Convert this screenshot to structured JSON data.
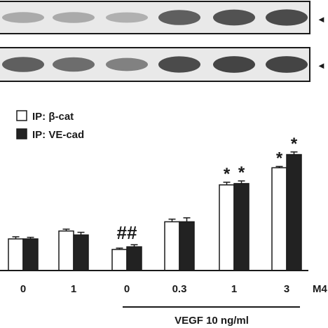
{
  "chart_data": {
    "type": "bar",
    "categories": [
      "0",
      "1",
      "0",
      "0.3",
      "1",
      "3"
    ],
    "group_label": "VEGF 10 ng/ml",
    "axis_suffix_label": "M4",
    "legend": {
      "position": "top-left",
      "entries": [
        "IP: β-cat",
        "IP: VE-cad"
      ]
    },
    "series": [
      {
        "name": "IP: β-cat",
        "color": "#ffffff",
        "values": [
          1.2,
          1.5,
          0.8,
          1.85,
          3.25,
          3.9
        ],
        "errors": [
          0.08,
          0.07,
          0.05,
          0.1,
          0.1,
          0.05
        ]
      },
      {
        "name": "IP: VE-cad",
        "color": "#222222",
        "values": [
          1.2,
          1.35,
          0.9,
          1.85,
          3.3,
          4.4
        ],
        "errors": [
          0.06,
          0.1,
          0.08,
          0.15,
          0.1,
          0.1
        ]
      }
    ],
    "annotations": [
      {
        "category_index": 2,
        "text": "##"
      },
      {
        "category_index": 4,
        "series_index": 0,
        "text": "*"
      },
      {
        "category_index": 4,
        "series_index": 1,
        "text": "*"
      },
      {
        "category_index": 5,
        "series_index": 0,
        "text": "*"
      },
      {
        "category_index": 5,
        "series_index": 1,
        "text": "*"
      }
    ],
    "ylim": [
      0,
      5
    ],
    "blots": {
      "arrow_glyph": "◄",
      "top_band_intensity": [
        0.25,
        0.25,
        0.2,
        0.8,
        0.9,
        0.95
      ],
      "bottom_band_intensity": [
        0.8,
        0.7,
        0.55,
        0.95,
        1.0,
        1.0
      ]
    }
  }
}
